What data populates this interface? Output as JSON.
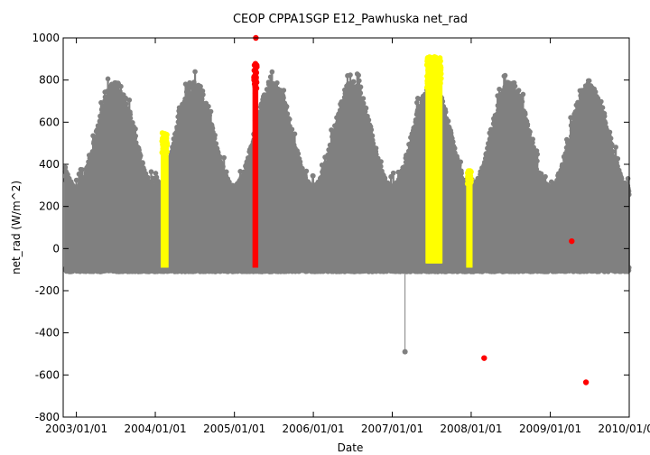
{
  "chart_data": {
    "type": "scatter",
    "title": "CEOP CPPA1SGP E12_Pawhuska  net_rad",
    "xlabel": "Date",
    "ylabel": "net_rad (W/m^2)",
    "xlim": [
      "2002/11/01",
      "2010/01/01"
    ],
    "ylim": [
      -800,
      1000
    ],
    "x_ticks": [
      "2003/01/01",
      "2004/01/01",
      "2005/01/01",
      "2006/01/01",
      "2007/01/01",
      "2008/01/01",
      "2009/01/01",
      "2010/01/01"
    ],
    "y_ticks": [
      -800,
      -600,
      -400,
      -200,
      0,
      200,
      400,
      600,
      800,
      1000
    ],
    "grid": false,
    "legend": "none",
    "colors": {
      "main": "#808080",
      "flag_yellow": "#ffff00",
      "flag_red": "#ff0000"
    },
    "series": [
      {
        "color_key": "main",
        "envelope_seasonal": {
          "daily_min": -100,
          "summer_peak": 800,
          "winter_peak": 300,
          "peak_day": "07-01"
        },
        "outliers": [
          {
            "x": "2007/03/01",
            "y": -490
          }
        ]
      },
      {
        "color_key": "flag_yellow",
        "ranges": [
          {
            "x_start": "2004/02/01",
            "x_end": "2004/02/25",
            "y_min": -90,
            "y_max": 550
          },
          {
            "x_start": "2007/06/10",
            "x_end": "2007/08/15",
            "y_min": -70,
            "y_max": 910
          },
          {
            "x_start": "2007/12/15",
            "x_end": "2008/01/01",
            "y_min": -90,
            "y_max": 370
          }
        ]
      },
      {
        "color_key": "flag_red",
        "ranges": [
          {
            "x_start": "2005/04/01",
            "x_end": "2005/04/15",
            "y_min": -90,
            "y_max": 880
          }
        ],
        "points": [
          {
            "x": "2005/04/10",
            "y": 1000
          },
          {
            "x": "2008/03/01",
            "y": -520
          },
          {
            "x": "2009/04/10",
            "y": 35
          },
          {
            "x": "2009/06/15",
            "y": -635
          }
        ]
      }
    ]
  }
}
